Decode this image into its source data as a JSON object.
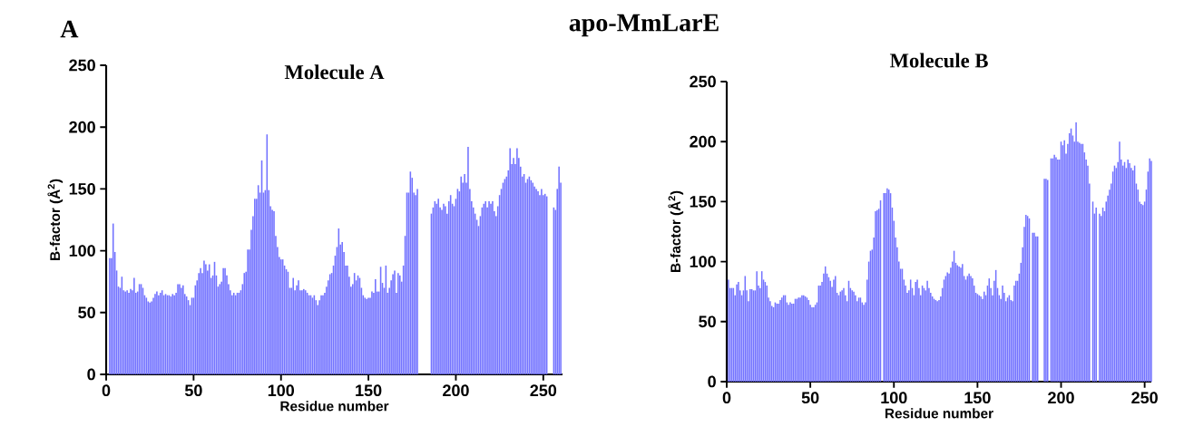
{
  "chart_data": [
    {
      "type": "bar",
      "title": "Molecule A",
      "xlabel": "Residue number",
      "ylabel": "B-factor (Å$^{2}$)",
      "annotations": [
        "A",
        "apo-MmLarE"
      ],
      "color": "#7373ff",
      "xlim": [
        0,
        261
      ],
      "ylim": [
        0,
        250
      ],
      "xticks": [
        0,
        50,
        100,
        150,
        200,
        250
      ],
      "yticks": [
        0,
        50,
        100,
        150,
        200,
        250
      ],
      "x": [
        2,
        3,
        4,
        5,
        6,
        7,
        8,
        9,
        10,
        11,
        12,
        13,
        14,
        15,
        16,
        17,
        18,
        19,
        20,
        21,
        22,
        23,
        24,
        25,
        26,
        27,
        28,
        29,
        30,
        31,
        32,
        33,
        34,
        35,
        36,
        37,
        38,
        39,
        40,
        41,
        42,
        43,
        44,
        45,
        46,
        47,
        48,
        49,
        50,
        51,
        52,
        53,
        54,
        55,
        56,
        57,
        58,
        59,
        60,
        61,
        62,
        63,
        64,
        65,
        66,
        67,
        68,
        69,
        70,
        71,
        72,
        73,
        74,
        75,
        76,
        77,
        78,
        79,
        80,
        81,
        82,
        83,
        84,
        85,
        86,
        87,
        88,
        89,
        90,
        91,
        92,
        93,
        94,
        95,
        96,
        97,
        98,
        99,
        100,
        101,
        102,
        103,
        104,
        105,
        106,
        107,
        108,
        109,
        110,
        111,
        112,
        113,
        114,
        115,
        116,
        117,
        118,
        119,
        120,
        121,
        122,
        123,
        124,
        125,
        126,
        127,
        128,
        129,
        130,
        131,
        132,
        133,
        134,
        135,
        136,
        137,
        138,
        139,
        140,
        141,
        142,
        143,
        144,
        145,
        146,
        147,
        148,
        149,
        150,
        151,
        152,
        153,
        154,
        155,
        156,
        157,
        158,
        159,
        160,
        161,
        162,
        163,
        164,
        165,
        166,
        167,
        168,
        169,
        170,
        171,
        172,
        173,
        174,
        175,
        176,
        177,
        178,
        179,
        180,
        181,
        182,
        183,
        184,
        185,
        186,
        187,
        188,
        189,
        190,
        191,
        192,
        193,
        194,
        195,
        196,
        197,
        198,
        199,
        200,
        201,
        202,
        203,
        204,
        205,
        206,
        207,
        208,
        209,
        210,
        211,
        212,
        213,
        214,
        215,
        216,
        217,
        218,
        219,
        220,
        221,
        222,
        223,
        224,
        225,
        226,
        227,
        228,
        229,
        230,
        231,
        232,
        233,
        234,
        235,
        236,
        237,
        238,
        239,
        240,
        241,
        242,
        243,
        244,
        245,
        246,
        247,
        248,
        249,
        250,
        251,
        252,
        253,
        254,
        255,
        256,
        257,
        258,
        259,
        260
      ],
      "values": [
        94,
        94,
        122,
        99,
        84,
        71,
        70,
        79,
        68,
        67,
        68,
        66,
        69,
        68,
        78,
        66,
        67,
        73,
        73,
        70,
        64,
        62,
        59,
        58,
        59,
        62,
        65,
        67,
        64,
        66,
        68,
        64,
        65,
        64,
        64,
        63,
        65,
        64,
        66,
        73,
        73,
        70,
        72,
        65,
        63,
        60,
        56,
        62,
        62,
        72,
        76,
        82,
        86,
        82,
        92,
        89,
        84,
        89,
        78,
        80,
        91,
        80,
        71,
        73,
        75,
        86,
        86,
        80,
        73,
        68,
        64,
        66,
        64,
        66,
        66,
        68,
        73,
        82,
        83,
        101,
        101,
        117,
        128,
        142,
        142,
        153,
        147,
        173,
        147,
        149,
        194,
        149,
        136,
        133,
        132,
        112,
        103,
        95,
        93,
        93,
        88,
        85,
        83,
        70,
        70,
        78,
        68,
        72,
        76,
        68,
        68,
        69,
        68,
        66,
        64,
        64,
        62,
        64,
        60,
        56,
        60,
        64,
        64,
        66,
        71,
        76,
        81,
        82,
        88,
        96,
        103,
        118,
        105,
        107,
        99,
        88,
        88,
        79,
        71,
        73,
        82,
        76,
        80,
        78,
        70,
        64,
        62,
        61,
        62,
        62,
        67,
        66,
        77,
        67,
        67,
        87,
        74,
        70,
        88,
        66,
        70,
        76,
        81,
        84,
        66,
        82,
        80,
        75,
        88,
        112,
        147,
        147,
        164,
        159,
        147,
        145,
        150,
        null,
        null,
        null,
        null,
        null,
        null,
        null,
        130,
        135,
        140,
        138,
        142,
        135,
        133,
        138,
        136,
        130,
        140,
        145,
        138,
        136,
        142,
        150,
        148,
        160,
        155,
        162,
        155,
        184,
        150,
        140,
        135,
        130,
        125,
        120,
        128,
        135,
        138,
        140,
        135,
        140,
        138,
        140,
        132,
        128,
        136,
        145,
        150,
        155,
        158,
        160,
        165,
        183,
        170,
        175,
        170,
        183,
        175,
        168,
        160,
        162,
        155,
        158,
        160,
        157,
        155,
        152,
        150,
        148,
        145,
        150,
        145,
        146,
        144,
        null,
        null,
        null,
        135,
        133,
        150,
        168,
        155
      ]
    },
    {
      "type": "bar",
      "title": "Molecule B",
      "xlabel": "Residue number",
      "ylabel": "B-factor (Å$^{2}$)",
      "color": "#7373ff",
      "xlim": [
        0,
        254
      ],
      "ylim": [
        0,
        250
      ],
      "xticks": [
        0,
        50,
        100,
        150,
        200,
        250
      ],
      "yticks": [
        0,
        50,
        100,
        150,
        200,
        250
      ],
      "x": [
        1,
        2,
        3,
        4,
        5,
        6,
        7,
        8,
        9,
        10,
        11,
        12,
        13,
        14,
        15,
        16,
        17,
        18,
        19,
        20,
        21,
        22,
        23,
        24,
        25,
        26,
        27,
        28,
        29,
        30,
        31,
        32,
        33,
        34,
        35,
        36,
        37,
        38,
        39,
        40,
        41,
        42,
        43,
        44,
        45,
        46,
        47,
        48,
        49,
        50,
        51,
        52,
        53,
        54,
        55,
        56,
        57,
        58,
        59,
        60,
        61,
        62,
        63,
        64,
        65,
        66,
        67,
        68,
        69,
        70,
        71,
        72,
        73,
        74,
        75,
        76,
        77,
        78,
        79,
        80,
        81,
        82,
        83,
        84,
        85,
        86,
        87,
        88,
        89,
        90,
        91,
        92,
        93,
        94,
        95,
        96,
        97,
        98,
        99,
        100,
        101,
        102,
        103,
        104,
        105,
        106,
        107,
        108,
        109,
        110,
        111,
        112,
        113,
        114,
        115,
        116,
        117,
        118,
        119,
        120,
        121,
        122,
        123,
        124,
        125,
        126,
        127,
        128,
        129,
        130,
        131,
        132,
        133,
        134,
        135,
        136,
        137,
        138,
        139,
        140,
        141,
        142,
        143,
        144,
        145,
        146,
        147,
        148,
        149,
        150,
        151,
        152,
        153,
        154,
        155,
        156,
        157,
        158,
        159,
        160,
        161,
        162,
        163,
        164,
        165,
        166,
        167,
        168,
        169,
        170,
        171,
        172,
        173,
        174,
        175,
        176,
        177,
        178,
        179,
        180,
        181,
        182,
        183,
        184,
        185,
        186,
        187,
        188,
        189,
        190,
        191,
        192,
        193,
        194,
        195,
        196,
        197,
        198,
        199,
        200,
        201,
        202,
        203,
        204,
        205,
        206,
        207,
        208,
        209,
        210,
        211,
        212,
        213,
        214,
        215,
        216,
        217,
        218,
        219,
        220,
        221,
        222,
        223,
        224,
        225,
        226,
        227,
        228,
        229,
        230,
        231,
        232,
        233,
        234,
        235,
        236,
        237,
        238,
        239,
        240,
        241,
        242,
        243,
        244,
        245,
        246,
        247,
        248,
        249,
        250,
        251,
        252,
        253,
        254
      ],
      "values": [
        85,
        78,
        78,
        78,
        72,
        81,
        83,
        76,
        72,
        76,
        88,
        76,
        67,
        77,
        77,
        76,
        76,
        92,
        80,
        78,
        92,
        85,
        83,
        80,
        70,
        67,
        63,
        62,
        66,
        65,
        65,
        68,
        70,
        72,
        72,
        66,
        64,
        66,
        65,
        65,
        69,
        69,
        70,
        70,
        72,
        72,
        71,
        70,
        68,
        64,
        62,
        62,
        64,
        66,
        80,
        80,
        83,
        90,
        96,
        90,
        87,
        84,
        79,
        85,
        88,
        74,
        72,
        75,
        76,
        78,
        72,
        67,
        84,
        78,
        76,
        75,
        72,
        67,
        70,
        70,
        66,
        64,
        66,
        85,
        100,
        109,
        110,
        120,
        142,
        143,
        144,
        151,
        null,
        157,
        157,
        161,
        160,
        157,
        145,
        134,
        120,
        112,
        100,
        94,
        94,
        85,
        80,
        74,
        76,
        85,
        78,
        72,
        83,
        85,
        78,
        72,
        80,
        78,
        76,
        84,
        78,
        74,
        71,
        69,
        68,
        67,
        68,
        71,
        78,
        85,
        88,
        91,
        90,
        95,
        100,
        109,
        99,
        97,
        96,
        95,
        98,
        88,
        85,
        88,
        90,
        88,
        86,
        80,
        74,
        73,
        72,
        71,
        69,
        75,
        72,
        80,
        86,
        78,
        72,
        84,
        93,
        78,
        72,
        69,
        80,
        74,
        67,
        70,
        72,
        68,
        67,
        80,
        84,
        84,
        90,
        99,
        112,
        129,
        139,
        138,
        136,
        null,
        124,
        124,
        121,
        121,
        null,
        null,
        null,
        169,
        169,
        168,
        null,
        186,
        186,
        189,
        187,
        185,
        185,
        200,
        197,
        201,
        190,
        198,
        207,
        211,
        205,
        200,
        216,
        200,
        199,
        198,
        198,
        191,
        185,
        180,
        165,
        null,
        150,
        140,
        145,
        null,
        140,
        138,
        145,
        142,
        150,
        155,
        160,
        165,
        175,
        180,
        178,
        183,
        200,
        185,
        180,
        183,
        178,
        185,
        182,
        178,
        176,
        180,
        165,
        160,
        150,
        148,
        147,
        150,
        160,
        175,
        186,
        184
      ]
    }
  ]
}
